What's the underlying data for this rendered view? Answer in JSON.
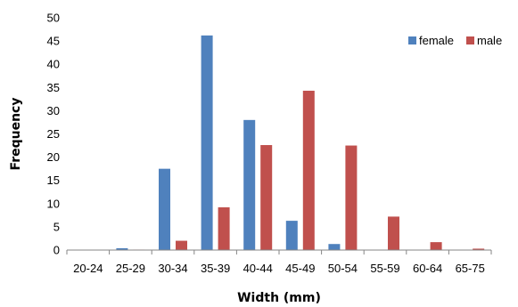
{
  "chart_data": {
    "type": "bar",
    "title": "",
    "xlabel": "Width (mm)",
    "ylabel": "Frequency",
    "ylim": [
      0,
      50
    ],
    "yticks": [
      0,
      5,
      10,
      15,
      20,
      25,
      30,
      35,
      40,
      45,
      50
    ],
    "grid": false,
    "legend_position": "top-right",
    "categories": [
      "20-24",
      "25-29",
      "30-34",
      "35-39",
      "40-44",
      "45-49",
      "50-54",
      "55-59",
      "60-64",
      "65-75"
    ],
    "series": [
      {
        "name": "female",
        "color": "#4f81bd",
        "values": [
          0,
          0.4,
          17.5,
          46.2,
          28,
          6.3,
          1.3,
          0,
          0,
          0
        ]
      },
      {
        "name": "male",
        "color": "#c0504d",
        "values": [
          0,
          0.1,
          2,
          9.2,
          22.6,
          34.3,
          22.5,
          7.2,
          1.7,
          0.3
        ]
      }
    ]
  }
}
